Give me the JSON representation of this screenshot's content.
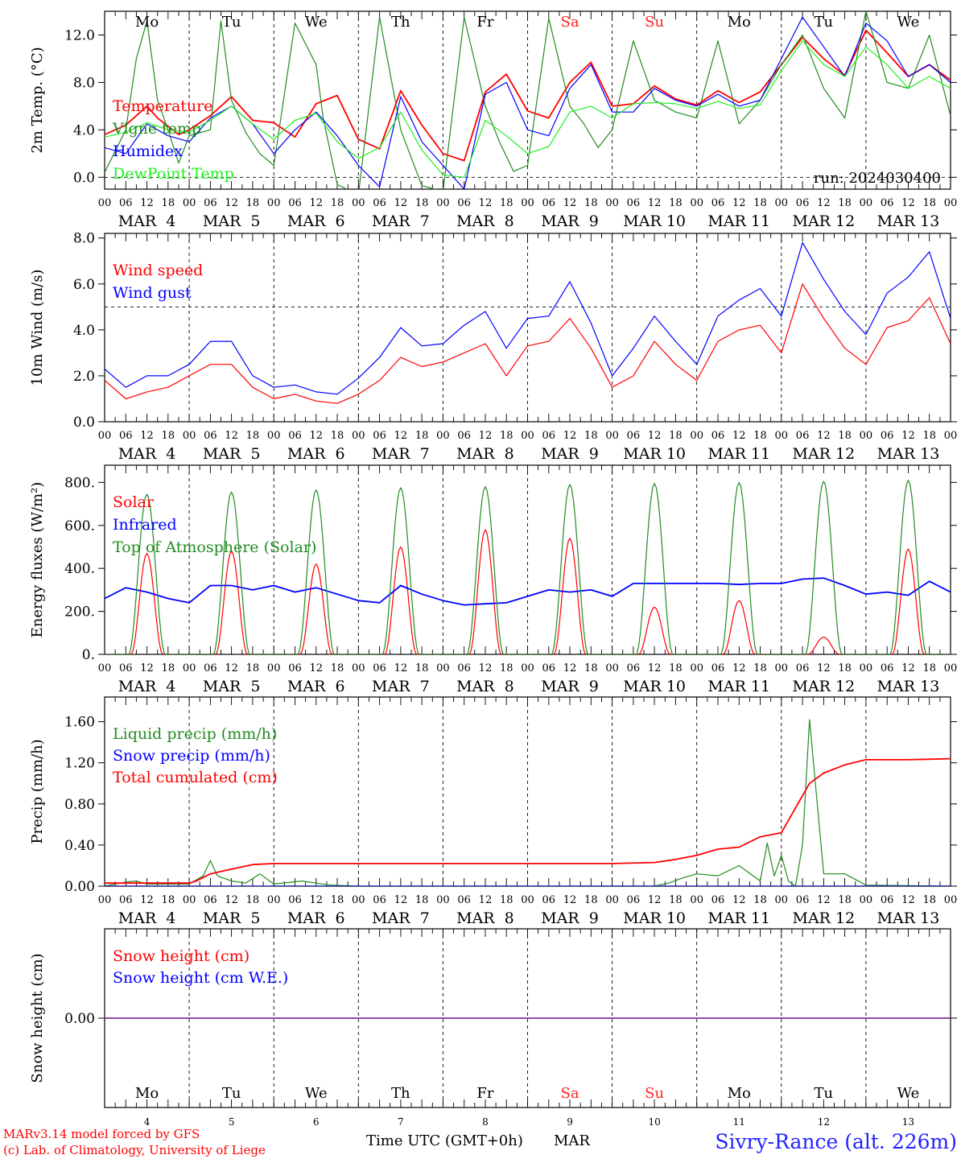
{
  "colors": {
    "temperature": "#ff0000",
    "vigne": "#228b22",
    "humidex": "#0000ff",
    "dewpoint": "#22ee22",
    "wind_speed": "#ff0000",
    "wind_gust": "#0000ff",
    "solar": "#ff0000",
    "infrared": "#0000ff",
    "toa": "#228b22",
    "liquid": "#228b22",
    "snow_precip": "#0000ff",
    "cumulated": "#ff0000",
    "snow_h": "#ff0000",
    "snow_we": "#0000ff",
    "weekend": "#ff2222",
    "weekday": "#000000",
    "footer_left": "#ff0000",
    "footer_right": "#2222ff"
  },
  "days": [
    {
      "abbr": "Mo",
      "date": "MAR  4",
      "num": "4",
      "weekend": false
    },
    {
      "abbr": "Tu",
      "date": "MAR  5",
      "num": "5",
      "weekend": false
    },
    {
      "abbr": "We",
      "date": "MAR  6",
      "num": "6",
      "weekend": false
    },
    {
      "abbr": "Th",
      "date": "MAR  7",
      "num": "7",
      "weekend": false
    },
    {
      "abbr": "Fr",
      "date": "MAR  8",
      "num": "8",
      "weekend": false
    },
    {
      "abbr": "Sa",
      "date": "MAR  9",
      "num": "9",
      "weekend": true
    },
    {
      "abbr": "Su",
      "date": "MAR 10",
      "num": "10",
      "weekend": true
    },
    {
      "abbr": "Mo",
      "date": "MAR 11",
      "num": "11",
      "weekend": false
    },
    {
      "abbr": "Tu",
      "date": "MAR 12",
      "num": "12",
      "weekend": false
    },
    {
      "abbr": "We",
      "date": "MAR 13",
      "num": "13",
      "weekend": false
    }
  ],
  "hour_ticks": [
    "00",
    "06",
    "12",
    "18"
  ],
  "hour_tick_end": "00",
  "run_label": "run: 2024030400",
  "footer": {
    "line1": "MARv3.14 model forced by GFS",
    "line2": "(c) Lab. of Climatology, University of Liege",
    "xlabel": "Time UTC (GMT+0h)",
    "month": "MAR",
    "station": "Sivry-Rance (alt. 226m)"
  },
  "chart_data": [
    {
      "type": "line",
      "ylabel": "2m Temp. (°C)",
      "ylim": [
        -1.0,
        14.0
      ],
      "yticks": [
        "0.0",
        "4.0",
        "8.0",
        "12.0"
      ],
      "ytick_values": [
        0,
        4,
        8,
        12
      ],
      "refline": 0,
      "x_unit": "hours from MAR 4 00 UTC",
      "series": [
        {
          "name": "Temperature",
          "x": [
            0,
            6,
            12,
            15,
            21,
            24,
            30,
            36,
            42,
            48,
            54,
            60,
            66,
            72,
            78,
            84,
            90,
            96,
            102,
            108,
            114,
            120,
            126,
            132,
            138,
            144,
            150,
            156,
            162,
            168,
            174,
            180,
            186,
            192,
            198,
            204,
            210,
            216,
            222,
            228,
            234,
            240
          ],
          "values": [
            3.6,
            4.4,
            6.0,
            5.0,
            3.6,
            4.0,
            5.2,
            6.8,
            4.8,
            4.6,
            3.4,
            6.2,
            6.9,
            3.2,
            2.4,
            7.3,
            4.4,
            2.0,
            1.4,
            7.2,
            8.7,
            5.6,
            5.0,
            8.0,
            9.7,
            6.0,
            6.2,
            7.7,
            6.6,
            6.1,
            7.3,
            6.3,
            7.2,
            9.5,
            11.8,
            10.0,
            8.6,
            12.4,
            10.5,
            8.5,
            9.5,
            8.2
          ]
        },
        {
          "name": "Vigne temp",
          "x": [
            0,
            6,
            9,
            12,
            15,
            18,
            21,
            24,
            30,
            33,
            36,
            40,
            44,
            48,
            54,
            60,
            62,
            66,
            72,
            78,
            84,
            90,
            96,
            102,
            108,
            112,
            116,
            120,
            126,
            132,
            136,
            140,
            144,
            150,
            156,
            162,
            168,
            174,
            180,
            186,
            192,
            198,
            204,
            210,
            216,
            222,
            228,
            234,
            240
          ],
          "values": [
            0.4,
            4.0,
            10.0,
            13.2,
            6.5,
            4.0,
            1.2,
            3.5,
            4.0,
            13.2,
            6.5,
            3.8,
            2.0,
            1.0,
            13.0,
            9.5,
            5.0,
            -0.6,
            -1.5,
            13.5,
            4.0,
            -0.7,
            -1.2,
            13.5,
            6.0,
            3.0,
            0.5,
            1.0,
            13.4,
            6.0,
            4.5,
            2.5,
            4.0,
            11.5,
            6.5,
            5.5,
            5.0,
            11.5,
            4.5,
            6.5,
            9.5,
            12.0,
            7.5,
            5.0,
            14.0,
            8.0,
            7.5,
            12.0,
            5.2
          ]
        },
        {
          "name": "Humidex",
          "x": [
            0,
            6,
            12,
            18,
            24,
            30,
            36,
            42,
            48,
            54,
            60,
            66,
            72,
            78,
            84,
            90,
            96,
            102,
            108,
            114,
            120,
            126,
            132,
            138,
            144,
            150,
            156,
            162,
            168,
            174,
            180,
            186,
            192,
            198,
            204,
            210,
            216,
            222,
            228,
            234,
            240
          ],
          "values": [
            2.5,
            2.0,
            4.5,
            3.5,
            3.0,
            5.0,
            6.0,
            4.5,
            2.0,
            4.0,
            5.5,
            3.5,
            1.0,
            -0.8,
            6.8,
            3.0,
            1.0,
            -1.0,
            7.0,
            8.0,
            4.0,
            3.5,
            7.5,
            9.5,
            5.5,
            5.5,
            7.5,
            6.5,
            6.0,
            7.0,
            6.0,
            6.5,
            10.0,
            13.5,
            11.0,
            8.5,
            13.0,
            11.5,
            8.5,
            9.5,
            8.0
          ]
        },
        {
          "name": "DewPoint Temp",
          "x": [
            0,
            6,
            12,
            18,
            24,
            30,
            36,
            42,
            48,
            54,
            60,
            66,
            72,
            78,
            84,
            90,
            96,
            102,
            108,
            114,
            120,
            126,
            132,
            138,
            144,
            150,
            156,
            162,
            168,
            174,
            180,
            186,
            192,
            198,
            204,
            210,
            216,
            222,
            228,
            234,
            240
          ],
          "values": [
            3.4,
            3.8,
            4.6,
            4.0,
            3.8,
            4.8,
            6.0,
            4.5,
            3.2,
            4.8,
            5.4,
            3.0,
            1.6,
            2.5,
            5.5,
            2.3,
            0.2,
            0.0,
            4.8,
            3.5,
            2.0,
            2.6,
            5.5,
            6.0,
            5.0,
            6.2,
            6.3,
            6.2,
            5.8,
            6.4,
            5.8,
            6.1,
            9.0,
            11.5,
            9.5,
            8.5,
            11.0,
            9.5,
            7.5,
            8.5,
            7.5
          ]
        }
      ]
    },
    {
      "type": "line",
      "ylabel": "10m Wind (m/s)",
      "ylim": [
        0.0,
        8.2
      ],
      "yticks": [
        "0.0",
        "2.0",
        "4.0",
        "6.0",
        "8.0"
      ],
      "ytick_values": [
        0,
        2,
        4,
        6,
        8
      ],
      "refline": 5,
      "x_unit": "hours from MAR 4 00 UTC",
      "series": [
        {
          "name": "Wind speed",
          "x": [
            0,
            6,
            12,
            18,
            24,
            30,
            36,
            42,
            48,
            54,
            60,
            66,
            72,
            78,
            84,
            90,
            96,
            102,
            108,
            114,
            120,
            126,
            132,
            138,
            144,
            150,
            156,
            162,
            168,
            174,
            180,
            186,
            192,
            198,
            204,
            210,
            216,
            222,
            228,
            234,
            240
          ],
          "values": [
            1.8,
            1.0,
            1.3,
            1.5,
            2.0,
            2.5,
            2.5,
            1.5,
            1.0,
            1.2,
            0.9,
            0.8,
            1.2,
            1.8,
            2.8,
            2.4,
            2.6,
            3.0,
            3.4,
            2.0,
            3.3,
            3.5,
            4.5,
            3.2,
            1.5,
            2.0,
            3.5,
            2.5,
            1.8,
            3.5,
            4.0,
            4.2,
            3.0,
            6.0,
            4.5,
            3.2,
            2.5,
            4.1,
            4.4,
            5.4,
            3.4
          ]
        },
        {
          "name": "Wind gust",
          "x": [
            0,
            6,
            12,
            18,
            24,
            30,
            36,
            42,
            48,
            54,
            60,
            66,
            72,
            78,
            84,
            90,
            96,
            102,
            108,
            114,
            120,
            126,
            132,
            138,
            144,
            150,
            156,
            162,
            168,
            174,
            180,
            186,
            192,
            198,
            204,
            210,
            216,
            222,
            228,
            234,
            240
          ],
          "values": [
            2.3,
            1.5,
            2.0,
            2.0,
            2.5,
            3.5,
            3.5,
            2.0,
            1.5,
            1.6,
            1.3,
            1.2,
            1.9,
            2.8,
            4.1,
            3.3,
            3.4,
            4.2,
            4.8,
            3.2,
            4.5,
            4.6,
            6.1,
            4.3,
            2.0,
            3.2,
            4.6,
            3.5,
            2.5,
            4.6,
            5.3,
            5.8,
            4.6,
            7.8,
            6.2,
            4.8,
            3.8,
            5.6,
            6.3,
            7.4,
            4.5
          ]
        }
      ]
    },
    {
      "type": "line",
      "ylabel": "Energy fluxes (W/m²)",
      "ylim": [
        0,
        880
      ],
      "yticks": [
        "0.",
        "200.",
        "400.",
        "600.",
        "800."
      ],
      "ytick_values": [
        0,
        200,
        400,
        600,
        800
      ],
      "x_unit": "hours from MAR 4 00 UTC",
      "series": [
        {
          "name": "Solar",
          "peaks": [
            470,
            480,
            420,
            500,
            580,
            540,
            220,
            250,
            80,
            490
          ],
          "peak_hour": 12,
          "half_width_hours": 4.5
        },
        {
          "name": "Infrared",
          "x": [
            0,
            6,
            12,
            18,
            24,
            30,
            36,
            42,
            48,
            54,
            60,
            66,
            72,
            78,
            84,
            90,
            96,
            102,
            108,
            114,
            120,
            126,
            132,
            138,
            144,
            150,
            156,
            162,
            168,
            174,
            180,
            186,
            192,
            198,
            204,
            210,
            216,
            222,
            228,
            234,
            240
          ],
          "values": [
            260,
            310,
            290,
            260,
            240,
            320,
            320,
            300,
            320,
            290,
            310,
            280,
            250,
            240,
            320,
            280,
            250,
            230,
            235,
            240,
            270,
            300,
            290,
            300,
            270,
            330,
            330,
            330,
            330,
            330,
            325,
            330,
            330,
            350,
            355,
            320,
            280,
            290,
            275,
            340,
            290
          ]
        },
        {
          "name": "Top of Atmosphere (Solar)",
          "peaks": [
            745,
            755,
            765,
            775,
            780,
            790,
            795,
            800,
            805,
            810
          ],
          "peak_hour": 12,
          "half_width_hours": 5.2
        }
      ]
    },
    {
      "type": "line",
      "ylabel": "Precip (mm/h)",
      "ylim": [
        0.0,
        1.84
      ],
      "yticks": [
        "0.00",
        "0.40",
        "0.80",
        "1.20",
        "1.60"
      ],
      "ytick_values": [
        0,
        0.4,
        0.8,
        1.2,
        1.6
      ],
      "x_unit": "hours from MAR 4 00 UTC",
      "series": [
        {
          "name": "Liquid precip (mm/h)",
          "x": [
            0,
            6,
            9,
            12,
            24,
            28,
            30,
            32,
            36,
            40,
            44,
            48,
            56,
            60,
            64,
            72,
            156,
            160,
            164,
            168,
            174,
            180,
            186,
            188,
            190,
            192,
            194,
            196,
            198,
            200,
            204,
            210,
            216,
            240
          ],
          "values": [
            0,
            0.04,
            0.05,
            0.02,
            0.02,
            0.1,
            0.25,
            0.1,
            0.05,
            0.03,
            0.12,
            0.02,
            0.05,
            0.03,
            0.01,
            0,
            0,
            0.03,
            0.08,
            0.12,
            0.1,
            0.2,
            0.05,
            0.42,
            0.1,
            0.3,
            0.05,
            0,
            0.4,
            1.62,
            0.12,
            0.12,
            0.01,
            0
          ]
        },
        {
          "name": "Snow precip (mm/h)",
          "x": [
            0,
            240
          ],
          "values": [
            0,
            0
          ]
        },
        {
          "name": "Total cumulated (cm)",
          "x": [
            0,
            24,
            26,
            30,
            34,
            38,
            42,
            48,
            72,
            120,
            144,
            156,
            162,
            168,
            174,
            180,
            186,
            192,
            200,
            204,
            210,
            216,
            228,
            240
          ],
          "values": [
            0.03,
            0.03,
            0.05,
            0.12,
            0.15,
            0.18,
            0.21,
            0.22,
            0.22,
            0.22,
            0.22,
            0.23,
            0.26,
            0.3,
            0.36,
            0.38,
            0.48,
            0.52,
            1.0,
            1.1,
            1.18,
            1.23,
            1.23,
            1.24
          ]
        }
      ]
    },
    {
      "type": "line",
      "ylabel": "Snow height (cm)",
      "ylim": [
        -1,
        1
      ],
      "yticks": [
        "0.00"
      ],
      "ytick_values": [
        0
      ],
      "x_unit": "hours from MAR 4 00 UTC",
      "series": [
        {
          "name": "Snow height (cm)",
          "x": [
            0,
            240
          ],
          "values": [
            0,
            0
          ]
        },
        {
          "name": "Snow height (cm W.E.)",
          "x": [
            0,
            240
          ],
          "values": [
            0,
            0
          ]
        }
      ]
    }
  ]
}
